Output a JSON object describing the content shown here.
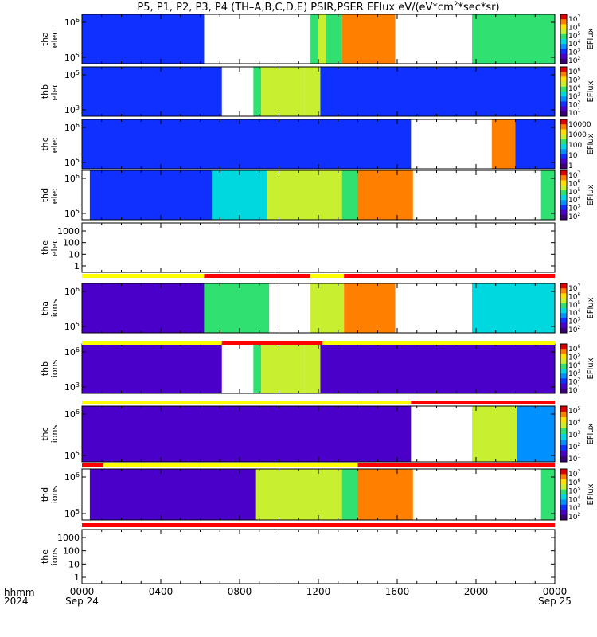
{
  "title": {
    "main": "P5, P1, P2, P3, P4 (TH–A,B,C,D,E) PSIR,PSER EFlux eV/(eV*cm",
    "sup": "2",
    "tail": "*sec*sr)"
  },
  "time_axis": {
    "row_label_1": "hhmm",
    "row_label_2": "2024",
    "date_start": "Sep 24",
    "date_end": "Sep 25",
    "range_hours": [
      0,
      24
    ],
    "ticks": [
      {
        "hour": 0,
        "label": "0000"
      },
      {
        "hour": 4,
        "label": "0400"
      },
      {
        "hour": 8,
        "label": "0800"
      },
      {
        "hour": 12,
        "label": "1200"
      },
      {
        "hour": 16,
        "label": "1600"
      },
      {
        "hour": 20,
        "label": "2000"
      },
      {
        "hour": 24,
        "label": "0000"
      }
    ]
  },
  "colors": {
    "spectrogram_scale": [
      "#3a0078",
      "#4a00c8",
      "#1030ff",
      "#0090ff",
      "#00d8e0",
      "#30e070",
      "#c8f030",
      "#ffe000",
      "#ff8000",
      "#e00000"
    ],
    "flag_yellow": "#ffff00",
    "flag_red": "#ff0000"
  },
  "chart_data": {
    "type": "heatmap",
    "x_unit": "hours since Sep 24 0000 UT",
    "panels": [
      {
        "id": "tha-elec",
        "ylabel": [
          "tha",
          "elec"
        ],
        "yticks": [
          {
            "label": "10",
            "exp": "6"
          },
          {
            "label": "10",
            "exp": "5"
          }
        ],
        "colorbar": {
          "label": "EFlux",
          "ticks": [
            {
              "b": "10",
              "e": "7"
            },
            {
              "b": "10",
              "e": "6"
            },
            {
              "b": "10",
              "e": "5"
            },
            {
              "b": "10",
              "e": "4"
            },
            {
              "b": "10",
              "e": "3"
            },
            {
              "b": "10",
              "e": "2"
            }
          ]
        },
        "blocks": [
          {
            "start": 0.0,
            "end": 6.2,
            "level": 0.25
          },
          {
            "start": 11.6,
            "end": 12.0,
            "level": 0.55
          },
          {
            "start": 12.0,
            "end": 12.4,
            "level": 0.7
          },
          {
            "start": 12.4,
            "end": 13.2,
            "level": 0.6
          },
          {
            "start": 13.2,
            "end": 15.9,
            "level": 0.9
          },
          {
            "start": 19.8,
            "end": 24.0,
            "level": 0.6
          }
        ]
      },
      {
        "id": "thb-elec",
        "ylabel": [
          "thb",
          "elec"
        ],
        "yticks": [
          {
            "label": "10",
            "exp": "5"
          },
          {
            "label": "10",
            "exp": "3"
          }
        ],
        "colorbar": {
          "label": "EFlux",
          "ticks": [
            {
              "b": "10",
              "e": "6"
            },
            {
              "b": "10",
              "e": "5"
            },
            {
              "b": "10",
              "e": "4"
            },
            {
              "b": "10",
              "e": "3"
            },
            {
              "b": "10",
              "e": "2"
            },
            {
              "b": "10",
              "e": "1"
            }
          ]
        },
        "blocks": [
          {
            "start": 0.0,
            "end": 7.1,
            "level": 0.2
          },
          {
            "start": 8.7,
            "end": 9.1,
            "level": 0.6
          },
          {
            "start": 9.1,
            "end": 11.3,
            "level": 0.72
          },
          {
            "start": 11.3,
            "end": 12.1,
            "level": 0.65
          },
          {
            "start": 12.1,
            "end": 24.0,
            "level": 0.2
          }
        ]
      },
      {
        "id": "thc-elec",
        "ylabel": [
          "thc",
          "elec"
        ],
        "yticks": [
          {
            "label": "10",
            "exp": "6"
          },
          {
            "label": "10",
            "exp": "5"
          }
        ],
        "colorbar": {
          "label": "EFlux",
          "ticks": [
            {
              "b": "10000",
              "e": ""
            },
            {
              "b": "1000",
              "e": ""
            },
            {
              "b": "100",
              "e": ""
            },
            {
              "b": "10",
              "e": ""
            },
            {
              "b": "1",
              "e": ""
            }
          ]
        },
        "blocks": [
          {
            "start": 0.0,
            "end": 16.7,
            "level": 0.25
          },
          {
            "start": 20.8,
            "end": 22.0,
            "level": 0.85
          },
          {
            "start": 22.0,
            "end": 24.0,
            "level": 0.25
          }
        ]
      },
      {
        "id": "thd-elec",
        "ylabel": [
          "thd",
          "elec"
        ],
        "yticks": [
          {
            "label": "10",
            "exp": "6"
          },
          {
            "label": "10",
            "exp": "5"
          }
        ],
        "colorbar": {
          "label": "EFlux",
          "ticks": [
            {
              "b": "10",
              "e": "7"
            },
            {
              "b": "10",
              "e": "6"
            },
            {
              "b": "10",
              "e": "5"
            },
            {
              "b": "10",
              "e": "4"
            },
            {
              "b": "10",
              "e": "3"
            },
            {
              "b": "10",
              "e": "2"
            }
          ]
        },
        "blocks": [
          {
            "start": 0.4,
            "end": 6.6,
            "level": 0.25
          },
          {
            "start": 6.6,
            "end": 9.4,
            "level": 0.45
          },
          {
            "start": 9.4,
            "end": 13.2,
            "level": 0.7
          },
          {
            "start": 13.2,
            "end": 14.0,
            "level": 0.6
          },
          {
            "start": 14.0,
            "end": 16.8,
            "level": 0.9
          },
          {
            "start": 23.3,
            "end": 24.0,
            "level": 0.5
          }
        ]
      },
      {
        "id": "the-elec",
        "ylabel": [
          "the",
          "elec"
        ],
        "yticks": [
          {
            "label": "1000",
            "exp": ""
          },
          {
            "label": "100",
            "exp": ""
          },
          {
            "label": "10",
            "exp": ""
          },
          {
            "label": "1",
            "exp": ""
          }
        ],
        "colorbar": null,
        "blocks": []
      },
      {
        "id": "tha-ions",
        "ylabel": [
          "tha",
          "ions"
        ],
        "yticks": [
          {
            "label": "10",
            "exp": "6"
          },
          {
            "label": "10",
            "exp": "5"
          }
        ],
        "colorbar": {
          "label": "EFlux",
          "ticks": [
            {
              "b": "10",
              "e": "7"
            },
            {
              "b": "10",
              "e": "6"
            },
            {
              "b": "10",
              "e": "5"
            },
            {
              "b": "10",
              "e": "4"
            },
            {
              "b": "10",
              "e": "3"
            },
            {
              "b": "10",
              "e": "2"
            }
          ]
        },
        "blocks": [
          {
            "start": 0.0,
            "end": 6.2,
            "level": 0.15
          },
          {
            "start": 6.2,
            "end": 9.5,
            "level": 0.55
          },
          {
            "start": 11.6,
            "end": 13.3,
            "level": 0.65
          },
          {
            "start": 13.3,
            "end": 15.9,
            "level": 0.88
          },
          {
            "start": 19.8,
            "end": 24.0,
            "level": 0.4
          }
        ]
      },
      {
        "id": "thb-ions",
        "ylabel": [
          "thb",
          "ions"
        ],
        "yticks": [
          {
            "label": "10",
            "exp": "6"
          },
          {
            "label": "10",
            "exp": "3"
          }
        ],
        "colorbar": {
          "label": "EFlux",
          "ticks": [
            {
              "b": "10",
              "e": "6"
            },
            {
              "b": "10",
              "e": "5"
            },
            {
              "b": "10",
              "e": "4"
            },
            {
              "b": "10",
              "e": "3"
            },
            {
              "b": "10",
              "e": "2"
            },
            {
              "b": "10",
              "e": "1"
            }
          ]
        },
        "blocks": [
          {
            "start": 0.0,
            "end": 7.1,
            "level": 0.15
          },
          {
            "start": 8.7,
            "end": 9.1,
            "level": 0.6
          },
          {
            "start": 9.1,
            "end": 11.3,
            "level": 0.72
          },
          {
            "start": 11.3,
            "end": 12.1,
            "level": 0.65
          },
          {
            "start": 12.1,
            "end": 24.0,
            "level": 0.15
          }
        ]
      },
      {
        "id": "thc-ions",
        "ylabel": [
          "thc",
          "ions"
        ],
        "yticks": [
          {
            "label": "10",
            "exp": "6"
          },
          {
            "label": "10",
            "exp": "5"
          }
        ],
        "colorbar": {
          "label": "EFlux",
          "ticks": [
            {
              "b": "10",
              "e": "5"
            },
            {
              "b": "10",
              "e": "4"
            },
            {
              "b": "10",
              "e": "3"
            },
            {
              "b": "10",
              "e": "2"
            },
            {
              "b": "10",
              "e": "1"
            }
          ]
        },
        "blocks": [
          {
            "start": 0.0,
            "end": 16.7,
            "level": 0.15
          },
          {
            "start": 19.8,
            "end": 22.1,
            "level": 0.7
          },
          {
            "start": 22.1,
            "end": 24.0,
            "level": 0.3
          }
        ]
      },
      {
        "id": "thd-ions",
        "ylabel": [
          "thd",
          "ions"
        ],
        "yticks": [
          {
            "label": "10",
            "exp": "6"
          },
          {
            "label": "10",
            "exp": "5"
          }
        ],
        "colorbar": {
          "label": "EFlux",
          "ticks": [
            {
              "b": "10",
              "e": "7"
            },
            {
              "b": "10",
              "e": "6"
            },
            {
              "b": "10",
              "e": "5"
            },
            {
              "b": "10",
              "e": "4"
            },
            {
              "b": "10",
              "e": "3"
            },
            {
              "b": "10",
              "e": "2"
            }
          ]
        },
        "blocks": [
          {
            "start": 0.4,
            "end": 8.8,
            "level": 0.15
          },
          {
            "start": 8.8,
            "end": 13.2,
            "level": 0.65
          },
          {
            "start": 13.2,
            "end": 14.0,
            "level": 0.6
          },
          {
            "start": 14.0,
            "end": 16.8,
            "level": 0.9
          },
          {
            "start": 23.3,
            "end": 24.0,
            "level": 0.5
          }
        ]
      },
      {
        "id": "the-ions",
        "ylabel": [
          "the",
          "ions"
        ],
        "yticks": [
          {
            "label": "1000",
            "exp": ""
          },
          {
            "label": "100",
            "exp": ""
          },
          {
            "label": "10",
            "exp": ""
          },
          {
            "label": "1",
            "exp": ""
          }
        ],
        "colorbar": null,
        "blocks": []
      }
    ],
    "mode_bars": [
      {
        "after_panel": "the-elec",
        "segments": [
          {
            "start": 0.0,
            "end": 6.2,
            "color": "yellow"
          },
          {
            "start": 6.2,
            "end": 11.6,
            "color": "red"
          },
          {
            "start": 11.6,
            "end": 13.3,
            "color": "yellow"
          },
          {
            "start": 13.3,
            "end": 24.0,
            "color": "red"
          }
        ]
      },
      {
        "after_panel": "tha-ions",
        "segments": [
          {
            "start": 0.0,
            "end": 7.1,
            "color": "yellow"
          },
          {
            "start": 7.1,
            "end": 12.2,
            "color": "red"
          },
          {
            "start": 12.2,
            "end": 24.0,
            "color": "yellow"
          }
        ]
      },
      {
        "after_panel": "thb-ions",
        "segments": [
          {
            "start": 0.0,
            "end": 16.7,
            "color": "yellow"
          },
          {
            "start": 16.7,
            "end": 24.0,
            "color": "red"
          }
        ]
      },
      {
        "after_panel": "thc-ions",
        "segments": [
          {
            "start": 0.0,
            "end": 1.1,
            "color": "red"
          },
          {
            "start": 1.1,
            "end": 14.0,
            "color": "yellow"
          },
          {
            "start": 14.0,
            "end": 24.0,
            "color": "red"
          }
        ]
      },
      {
        "after_panel": "thd-ions",
        "segments": [
          {
            "start": 0.0,
            "end": 24.0,
            "color": "red"
          }
        ]
      }
    ]
  }
}
